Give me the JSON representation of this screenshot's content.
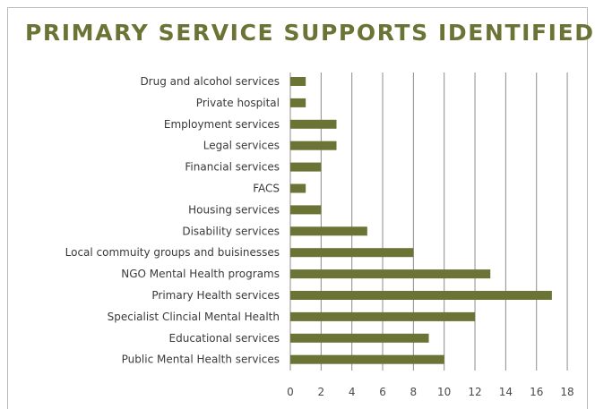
{
  "colors": {
    "bar": "#6b7335",
    "title": "#6b7335",
    "grid": "#8c8c8c",
    "text": "#3a3a3a"
  },
  "chart_data": {
    "type": "bar",
    "orientation": "horizontal",
    "title": "PRIMARY SERVICE SUPPORTS IDENTIFIED",
    "categories": [
      "Drug and alcohol services",
      "Private hospital",
      "Employment services",
      "Legal services",
      "Financial services",
      "FACS",
      "Housing services",
      "Disability services",
      "Local commuity groups and buisinesses",
      "NGO Mental Health programs",
      "Primary Health services",
      "Specialist Clincial Mental Health",
      "Educational services",
      "Public Mental Health services"
    ],
    "values": [
      1,
      1,
      3,
      3,
      2,
      1,
      2,
      5,
      8,
      13,
      17,
      12,
      9,
      10
    ],
    "xlim": [
      0,
      18
    ],
    "xticks": [
      0,
      2,
      4,
      6,
      8,
      10,
      12,
      14,
      16,
      18
    ],
    "grid": "vertical",
    "legend": "none"
  }
}
